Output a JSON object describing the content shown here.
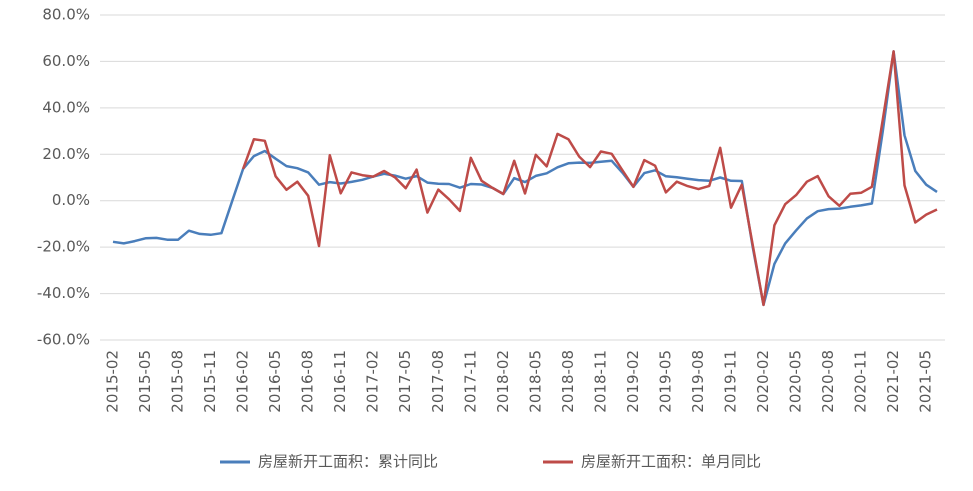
{
  "chart_data": {
    "type": "line",
    "categories": [
      "2015-02",
      null,
      null,
      "2015-05",
      null,
      null,
      "2015-08",
      null,
      null,
      "2015-11",
      null,
      null,
      "2016-02",
      null,
      null,
      "2016-05",
      null,
      null,
      "2016-08",
      null,
      null,
      "2016-11",
      null,
      null,
      "2017-02",
      null,
      null,
      "2017-05",
      null,
      null,
      "2017-08",
      null,
      null,
      "2017-11",
      null,
      null,
      "2018-02",
      null,
      null,
      "2018-05",
      null,
      null,
      "2018-08",
      null,
      null,
      "2018-11",
      null,
      null,
      "2019-02",
      null,
      null,
      "2019-05",
      null,
      null,
      "2019-08",
      null,
      null,
      "2019-11",
      null,
      null,
      "2020-02",
      null,
      null,
      "2020-05",
      null,
      null,
      "2020-08",
      null,
      null,
      "2020-11",
      null,
      null,
      "2021-02",
      null,
      null,
      "2021-05",
      null
    ],
    "series": [
      {
        "name": "房屋新开工面积：累计同比",
        "color": "#4a7ebb",
        "values": [
          -17.7,
          -18.4,
          -17.4,
          -16.2,
          -16.0,
          -16.8,
          -16.8,
          -12.9,
          -14.3,
          -14.7,
          -14.0,
          0,
          13.7,
          19.2,
          21.4,
          18.1,
          14.9,
          14.0,
          12.2,
          6.9,
          8.0,
          7.4,
          8.1,
          9.0,
          10.4,
          11.6,
          10.8,
          9.5,
          10.6,
          7.8,
          7.3,
          7.2,
          5.6,
          7.2,
          7.0,
          5.5,
          2.9,
          9.7,
          8.0,
          10.7,
          11.8,
          14.4,
          16.1,
          16.4,
          16.3,
          16.8,
          17.2,
          12.0,
          6.0,
          11.9,
          13.1,
          10.5,
          10.1,
          9.5,
          8.9,
          8.6,
          10.0,
          8.6,
          8.5,
          -20.0,
          -44.9,
          -27.2,
          -18.4,
          -12.8,
          -7.6,
          -4.5,
          -3.6,
          -3.4,
          -2.6,
          -2.0,
          -1.2,
          30.0,
          64.3,
          28.2,
          12.8,
          6.9,
          3.8
        ]
      },
      {
        "name": "房屋新开工面积：单月同比",
        "color": "#be4b48",
        "values": [
          null,
          null,
          null,
          null,
          null,
          null,
          null,
          null,
          null,
          null,
          null,
          null,
          13.7,
          26.5,
          25.8,
          10.5,
          4.7,
          8.2,
          2.1,
          -19.5,
          19.6,
          3.2,
          12.2,
          11.0,
          10.4,
          12.8,
          10.1,
          5.4,
          13.4,
          -5.1,
          4.8,
          0.6,
          -4.4,
          18.5,
          8.6,
          5.5,
          2.9,
          17.2,
          3.1,
          19.8,
          14.8,
          28.8,
          26.5,
          19.0,
          14.5,
          21.2,
          20.2,
          13.0,
          6.0,
          17.5,
          15.1,
          3.6,
          8.2,
          6.3,
          5.0,
          6.4,
          22.8,
          -3.0,
          6.9,
          -19.0,
          -44.9,
          -10.6,
          -1.5,
          2.4,
          8.2,
          10.6,
          1.9,
          -2.2,
          3.0,
          3.4,
          6.0,
          35.0,
          64.3,
          6.6,
          -9.4,
          -6.0,
          -3.8
        ]
      }
    ],
    "ylim": [
      -60,
      80
    ],
    "yticks": [
      {
        "value": -60,
        "label": "-60.0%"
      },
      {
        "value": -40,
        "label": "-40.0%"
      },
      {
        "value": -20,
        "label": "-20.0%"
      },
      {
        "value": 0,
        "label": "0.0%"
      },
      {
        "value": 20,
        "label": "20.0%"
      },
      {
        "value": 40,
        "label": "40.0%"
      },
      {
        "value": 60,
        "label": "60.0%"
      },
      {
        "value": 80,
        "label": "80.0%"
      }
    ],
    "grid": true,
    "legend": "bottom"
  }
}
